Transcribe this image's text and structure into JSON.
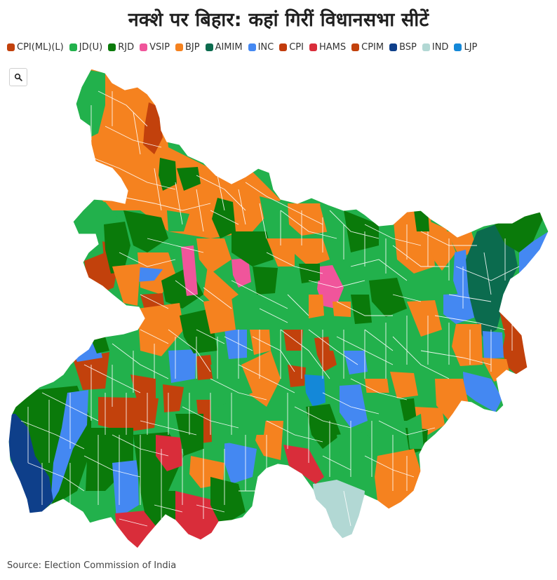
{
  "title": "नक्शे पर बिहार: कहां गिरीं विधानसभा सीटें",
  "legend": [
    {
      "label": "CPI(ML)(L)",
      "color": "#c2410c"
    },
    {
      "label": "JD(U)",
      "color": "#22b14c"
    },
    {
      "label": "RJD",
      "color": "#0a7a0a"
    },
    {
      "label": "VSIP",
      "color": "#f0559b"
    },
    {
      "label": "BJP",
      "color": "#f5821f"
    },
    {
      "label": "AIMIM",
      "color": "#0b6b4e"
    },
    {
      "label": "INC",
      "color": "#4488f2"
    },
    {
      "label": "CPI",
      "color": "#c23b0c"
    },
    {
      "label": "HAMS",
      "color": "#d92d3a"
    },
    {
      "label": "CPIM",
      "color": "#c2410c"
    },
    {
      "label": "BSP",
      "color": "#0e3f8a"
    },
    {
      "label": "IND",
      "color": "#b2d8d4"
    },
    {
      "label": "LJP",
      "color": "#1488d8"
    }
  ],
  "zoom": {
    "icon": "search-icon"
  },
  "source": "Source: Election Commission of India"
}
